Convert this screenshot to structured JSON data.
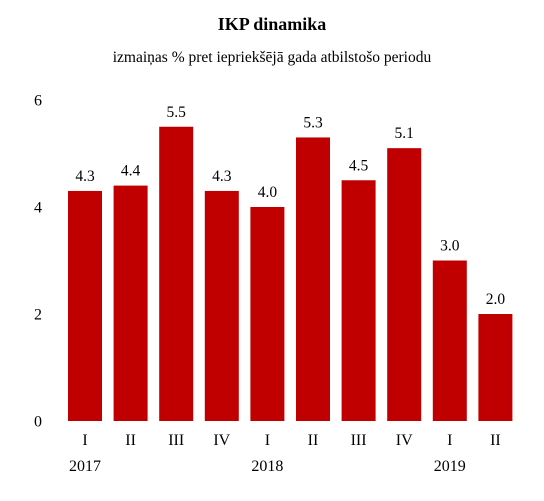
{
  "chart_data": {
    "type": "bar",
    "title": "IKP dinamika",
    "subtitle": "izmaiņas % pret iepriekšējā gada atbilstošo periodu",
    "categories": [
      "I",
      "II",
      "III",
      "IV",
      "I",
      "II",
      "III",
      "IV",
      "I",
      "II"
    ],
    "values": [
      4.3,
      4.4,
      5.5,
      4.3,
      4.0,
      5.3,
      4.5,
      5.1,
      3.0,
      2.0
    ],
    "data_labels": [
      "4.3",
      "4.4",
      "5.5",
      "4.3",
      "4.0",
      "5.3",
      "4.5",
      "5.1",
      "3.0",
      "2.0"
    ],
    "year_labels": [
      {
        "label": "2017",
        "category_index": 0
      },
      {
        "label": "2018",
        "category_index": 4
      },
      {
        "label": "2019",
        "category_index": 8
      }
    ],
    "yticks": [
      0,
      2,
      4,
      6
    ],
    "ylim": [
      0,
      6
    ],
    "grid": false,
    "bar_color": "#c00000",
    "xlabel": "",
    "ylabel": ""
  }
}
